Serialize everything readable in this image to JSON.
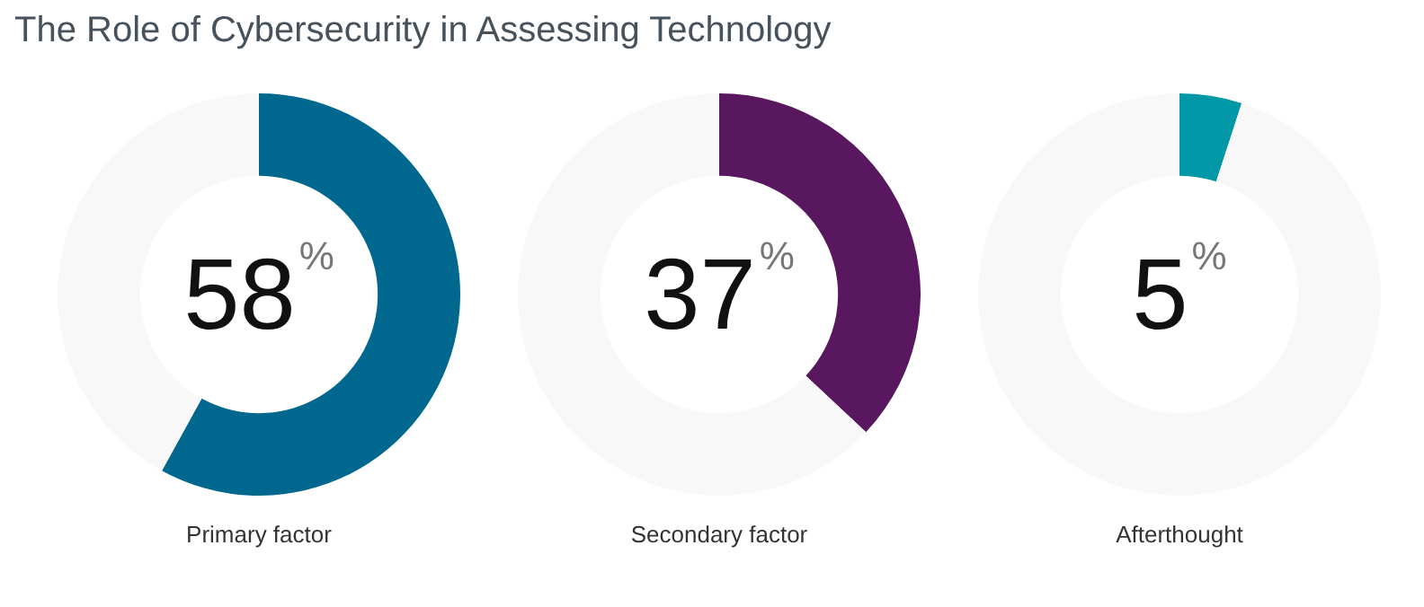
{
  "chart_data": [
    {
      "type": "donut",
      "title": "The Role of Cybersecurity in Assessing Technology",
      "xlabel": "Primary factor",
      "categories": [
        null,
        null
      ],
      "values": [
        58,
        42
      ],
      "colors": [
        "#00688f",
        "#f8f8f8"
      ],
      "value_labels": [
        "58$^{%}$",
        null
      ],
      "legend": false
    },
    {
      "type": "donut",
      "xlabel": "Secondary factor",
      "categories": [
        null,
        null
      ],
      "values": [
        37,
        63
      ],
      "colors": [
        "#58175e",
        "#f8f8f8"
      ],
      "value_labels": [
        "37$^{%}$",
        null
      ],
      "legend": false
    },
    {
      "type": "donut",
      "xlabel": "Afterthought",
      "categories": [
        null,
        null
      ],
      "values": [
        5,
        95
      ],
      "colors": [
        "#0097a7",
        "#f8f8f8"
      ],
      "value_labels": [
        "5$^{%}$",
        null
      ],
      "legend": false
    }
  ]
}
